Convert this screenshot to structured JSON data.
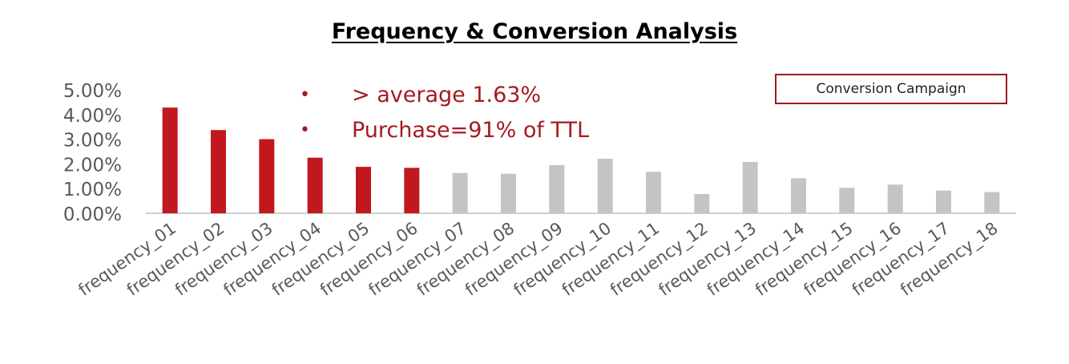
{
  "chart_data": {
    "type": "bar",
    "title": "Frequency & Conversion Analysis",
    "legend": {
      "label": "Conversion Campaign",
      "placement": "top-right"
    },
    "annotations": [
      "> average 1.63%",
      "Purchase=91% of TTL"
    ],
    "categories": [
      "frequency_01",
      "frequency_02",
      "frequency_03",
      "frequency_04",
      "frequency_05",
      "frequency_06",
      "frequency_07",
      "frequency_08",
      "frequency_09",
      "frequency_10",
      "frequency_11",
      "frequency_12",
      "frequency_13",
      "frequency_14",
      "frequency_15",
      "frequency_16",
      "frequency_17",
      "frequency_18"
    ],
    "values": [
      4.28,
      3.37,
      3.0,
      2.25,
      1.88,
      1.84,
      1.63,
      1.6,
      1.95,
      2.21,
      1.68,
      0.78,
      2.08,
      1.42,
      1.03,
      1.16,
      0.92,
      0.86
    ],
    "highlight": [
      true,
      true,
      true,
      true,
      true,
      true,
      false,
      false,
      false,
      false,
      false,
      false,
      false,
      false,
      false,
      false,
      false,
      false
    ],
    "y_ticks": [
      "0.00%",
      "1.00%",
      "2.00%",
      "3.00%",
      "4.00%",
      "5.00%"
    ],
    "ylim": [
      0,
      5
    ],
    "xlabel": "",
    "ylabel": "",
    "grid": false,
    "colors": {
      "highlight": "#c0181e",
      "other": "#c4c4c4",
      "axis": "#d0d0d0",
      "tick_text": "#595959",
      "annotation": "#a31b20"
    }
  }
}
